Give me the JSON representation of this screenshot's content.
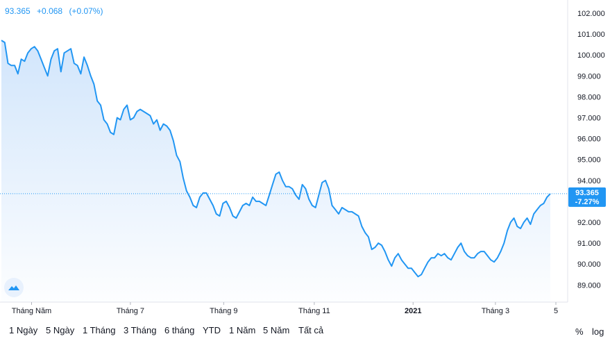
{
  "legend": {
    "price": "93.365",
    "change": "+0.068",
    "change_pct": "(+0.07%)"
  },
  "price_tag": {
    "price": "93.365",
    "pct": "-7.27%"
  },
  "colors": {
    "line": "#2196f3",
    "tag_bg": "#2196f3",
    "fill_top": "#cfe4fb"
  },
  "icons": {
    "logo": "tradingview-cloud-icon"
  },
  "range_buttons": [
    "1 Ngày",
    "5 Ngày",
    "1 Tháng",
    "3 Tháng",
    "6 tháng",
    "YTD",
    "1 Năm",
    "5 Năm",
    "Tất cả"
  ],
  "right_buttons": {
    "percent": "%",
    "log": "log"
  },
  "chart_data": {
    "type": "area",
    "y_ticks": [
      "102.000",
      "101.000",
      "100.000",
      "99.000",
      "98.000",
      "97.000",
      "96.000",
      "95.000",
      "94.000",
      "93.000",
      "92.000",
      "91.000",
      "90.000",
      "89.000"
    ],
    "y_tick_values": [
      102,
      101,
      100,
      99,
      98,
      97,
      96,
      95,
      94,
      93,
      92,
      91,
      90,
      89
    ],
    "ylim": [
      88.0,
      102.6
    ],
    "x_ticks": [
      {
        "label": "Tháng Năm",
        "t": 0.055,
        "bold": false
      },
      {
        "label": "Tháng 7",
        "t": 0.235,
        "bold": false
      },
      {
        "label": "Tháng 9",
        "t": 0.405,
        "bold": false
      },
      {
        "label": "Tháng 11",
        "t": 0.57,
        "bold": false
      },
      {
        "label": "2021",
        "t": 0.75,
        "bold": true
      },
      {
        "label": "Tháng 3",
        "t": 0.9,
        "bold": false
      },
      {
        "label": "5",
        "t": 1.0,
        "bold": false
      }
    ],
    "values": [
      100.7,
      100.6,
      99.6,
      99.5,
      99.5,
      99.1,
      99.8,
      99.7,
      100.1,
      100.3,
      100.4,
      100.2,
      99.8,
      99.4,
      99.0,
      99.8,
      100.2,
      100.3,
      99.2,
      100.1,
      100.2,
      100.3,
      99.6,
      99.5,
      99.1,
      99.9,
      99.5,
      99.0,
      98.6,
      97.8,
      97.6,
      96.9,
      96.7,
      96.3,
      96.2,
      97.0,
      96.9,
      97.4,
      97.6,
      96.9,
      97.0,
      97.3,
      97.4,
      97.3,
      97.2,
      97.1,
      96.7,
      96.9,
      96.4,
      96.7,
      96.6,
      96.4,
      95.9,
      95.2,
      94.9,
      94.1,
      93.5,
      93.2,
      92.8,
      92.7,
      93.2,
      93.4,
      93.4,
      93.1,
      92.8,
      92.4,
      92.3,
      92.9,
      93.0,
      92.7,
      92.3,
      92.2,
      92.5,
      92.8,
      92.9,
      92.8,
      93.2,
      93.0,
      93.0,
      92.9,
      92.8,
      93.3,
      93.8,
      94.3,
      94.4,
      94.0,
      93.7,
      93.7,
      93.6,
      93.3,
      93.1,
      93.8,
      93.6,
      93.1,
      92.8,
      92.7,
      93.3,
      93.9,
      94.0,
      93.6,
      92.8,
      92.6,
      92.4,
      92.7,
      92.6,
      92.5,
      92.5,
      92.4,
      92.3,
      91.8,
      91.5,
      91.3,
      90.7,
      90.8,
      91.0,
      90.9,
      90.6,
      90.2,
      89.9,
      90.3,
      90.5,
      90.2,
      90.0,
      89.8,
      89.8,
      89.6,
      89.4,
      89.5,
      89.8,
      90.1,
      90.3,
      90.3,
      90.5,
      90.4,
      90.5,
      90.3,
      90.2,
      90.5,
      90.8,
      91.0,
      90.6,
      90.4,
      90.3,
      90.3,
      90.5,
      90.6,
      90.6,
      90.4,
      90.2,
      90.1,
      90.3,
      90.6,
      91.0,
      91.6,
      92.0,
      92.2,
      91.8,
      91.7,
      92.0,
      92.2,
      91.9,
      92.4,
      92.6,
      92.8,
      92.9,
      93.2,
      93.365
    ],
    "last_value": 93.365
  }
}
